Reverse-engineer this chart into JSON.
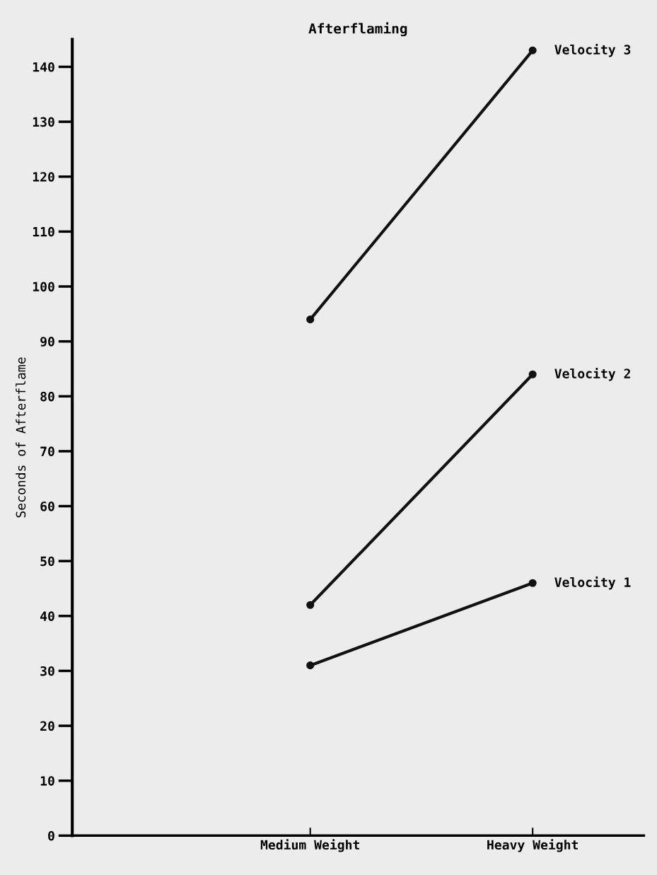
{
  "chart_data": {
    "type": "line",
    "title": "Afterflaming",
    "ylabel": "Seconds of Afterflame",
    "categories": [
      "Medium Weight",
      "Heavy Weight"
    ],
    "series": [
      {
        "name": "Velocity 1",
        "color": "#111111",
        "values": [
          31,
          46
        ]
      },
      {
        "name": "Velocity 2",
        "color": "#111111",
        "values": [
          42,
          84
        ]
      },
      {
        "name": "Velocity 3",
        "color": "#111111",
        "values": [
          94,
          143
        ]
      }
    ],
    "ylim": [
      0,
      145
    ],
    "yticks": [
      0,
      10,
      20,
      30,
      40,
      50,
      60,
      70,
      80,
      90,
      100,
      110,
      120,
      130,
      140
    ],
    "marker": "circle",
    "line_style": "solid",
    "grid": false,
    "legend": false
  }
}
